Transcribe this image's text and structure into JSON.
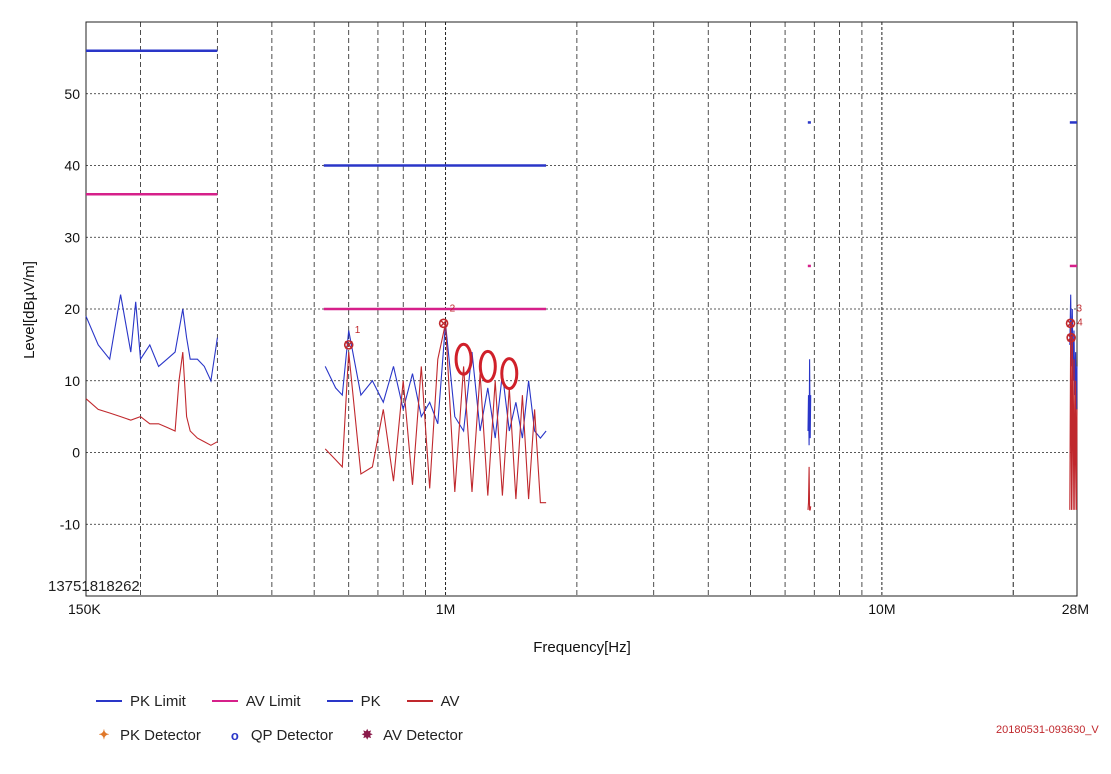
{
  "chart_data": {
    "type": "line",
    "xlabel": "Frequency[Hz]",
    "ylabel": "Level[dBµV/m]",
    "x_scale": "log",
    "xlim": [
      150000,
      28000000
    ],
    "ylim": [
      -20,
      60
    ],
    "grid": true,
    "x_tick_labels": [
      {
        "value": 150000,
        "label": "150K"
      },
      {
        "value": 1000000,
        "label": "1M"
      },
      {
        "value": 10000000,
        "label": "10M"
      },
      {
        "value": 28000000,
        "label": "28M"
      }
    ],
    "y_ticks": [
      -20,
      -10,
      0,
      10,
      20,
      30,
      40,
      50
    ],
    "y_tick_labels": [
      "",
      "-10",
      "0",
      "10",
      "20",
      "30",
      "40",
      "50"
    ],
    "legend_position": "bottom-left",
    "legend": [
      {
        "name": "PK Limit",
        "kind": "line",
        "color": "#2a36c8"
      },
      {
        "name": "AV Limit",
        "kind": "line",
        "color": "#d6208a"
      },
      {
        "name": "PK",
        "kind": "line",
        "color": "#2a36c8"
      },
      {
        "name": "AV",
        "kind": "line",
        "color": "#c0282d"
      },
      {
        "name": "PK Detector",
        "kind": "marker",
        "symbol": "✦",
        "color": "#e0782a"
      },
      {
        "name": "QP Detector",
        "kind": "marker",
        "symbol": "o",
        "color": "#2a36c8"
      },
      {
        "name": "AV Detector",
        "kind": "marker",
        "symbol": "✸",
        "color": "#8a1a4a"
      }
    ],
    "limit_segments": [
      {
        "series": "PK Limit",
        "x": [
          150000,
          300000
        ],
        "y": 56
      },
      {
        "series": "AV Limit",
        "x": [
          150000,
          300000
        ],
        "y": 36
      },
      {
        "series": "PK Limit",
        "x": [
          526000,
          1700000
        ],
        "y": 40
      },
      {
        "series": "AV Limit",
        "x": [
          526000,
          1700000
        ],
        "y": 20
      },
      {
        "series": "PK Limit",
        "x": [
          6765000,
          6876000
        ],
        "y": 46
      },
      {
        "series": "AV Limit",
        "x": [
          6765000,
          6876000
        ],
        "y": 26
      },
      {
        "series": "PK Limit",
        "x": [
          26960000,
          28000000
        ],
        "y": 46
      },
      {
        "series": "AV Limit",
        "x": [
          26960000,
          28000000
        ],
        "y": 26
      }
    ],
    "series": [
      {
        "name": "PK",
        "segment": 1,
        "x": [
          150000,
          160000,
          170000,
          180000,
          190000,
          195000,
          200000,
          210000,
          220000,
          230000,
          240000,
          250000,
          255000,
          260000,
          270000,
          280000,
          290000,
          300000
        ],
        "y": [
          19,
          15,
          13,
          22,
          14,
          21,
          13,
          15,
          12,
          13,
          14,
          20,
          16,
          13,
          13,
          12,
          10,
          16
        ]
      },
      {
        "name": "AV",
        "segment": 1,
        "x": [
          150000,
          160000,
          170000,
          180000,
          190000,
          200000,
          210000,
          220000,
          230000,
          240000,
          245000,
          250000,
          255000,
          260000,
          270000,
          280000,
          290000,
          300000
        ],
        "y": [
          7.5,
          6,
          5.5,
          5,
          4.5,
          5,
          4,
          4,
          3.5,
          3,
          10,
          14,
          5,
          3,
          2,
          1.5,
          1,
          1.5
        ]
      },
      {
        "name": "PK",
        "segment": 2,
        "x": [
          530000,
          560000,
          580000,
          600000,
          640000,
          680000,
          720000,
          760000,
          800000,
          840000,
          880000,
          920000,
          960000,
          1000000,
          1050000,
          1100000,
          1150000,
          1200000,
          1250000,
          1300000,
          1350000,
          1400000,
          1450000,
          1500000,
          1550000,
          1600000,
          1650000,
          1700000
        ],
        "y": [
          12,
          9,
          8,
          17,
          8,
          10,
          7,
          12,
          6,
          11,
          5,
          7,
          4,
          18,
          5,
          3,
          14,
          3,
          9,
          2,
          11,
          3,
          7,
          2,
          10,
          3,
          2,
          3
        ]
      },
      {
        "name": "AV",
        "segment": 2,
        "x": [
          530000,
          560000,
          580000,
          600000,
          640000,
          680000,
          720000,
          760000,
          800000,
          840000,
          880000,
          920000,
          960000,
          1000000,
          1050000,
          1100000,
          1150000,
          1200000,
          1250000,
          1300000,
          1350000,
          1400000,
          1450000,
          1500000,
          1550000,
          1600000,
          1650000,
          1700000
        ],
        "y": [
          0.5,
          -1,
          -2,
          14,
          -3,
          -2,
          6,
          -4,
          10,
          -4.5,
          12,
          -5,
          13,
          18,
          -5.5,
          12,
          -5.5,
          11,
          -6,
          10,
          -6,
          9,
          -6.5,
          8,
          -6.5,
          6,
          -7,
          -7
        ]
      },
      {
        "name": "PK",
        "segment": 3,
        "x": [
          6770000,
          6790000,
          6810000,
          6830000,
          6850000,
          6870000
        ],
        "y": [
          3,
          8,
          1,
          13,
          2,
          8
        ]
      },
      {
        "name": "AV",
        "segment": 3,
        "x": [
          6770000,
          6790000,
          6810000,
          6830000,
          6850000,
          6870000
        ],
        "y": [
          -8,
          -7,
          -2,
          -8,
          -8,
          -7.5
        ]
      },
      {
        "name": "PK",
        "segment": 4,
        "x": [
          26960000,
          27080000,
          27200000,
          27320000,
          27440000,
          27560000,
          27680000,
          27800000,
          27920000,
          28000000
        ],
        "y": [
          15,
          22,
          12,
          20,
          10,
          17,
          8,
          14,
          6,
          12
        ]
      },
      {
        "name": "AV",
        "segment": 4,
        "x": [
          26960000,
          27080000,
          27200000,
          27320000,
          27440000,
          27560000,
          27680000,
          27800000,
          27920000,
          28000000
        ],
        "y": [
          -8,
          18,
          -8,
          16,
          -8,
          13,
          -8,
          10,
          -8,
          6
        ]
      }
    ],
    "markers": [
      {
        "label": "1",
        "x": 600000,
        "y": 15
      },
      {
        "label": "2",
        "x": 990000,
        "y": 18
      },
      {
        "label": "3",
        "x": 27060000,
        "y": 18
      },
      {
        "label": "4",
        "x": 27150000,
        "y": 16
      }
    ],
    "circled_peaks": [
      {
        "x": 1100000,
        "y": 13
      },
      {
        "x": 1250000,
        "y": 12
      },
      {
        "x": 1400000,
        "y": 11
      }
    ]
  },
  "annotations": {
    "watermark": "13751818262",
    "timestamp": "20180531-093630_V"
  }
}
